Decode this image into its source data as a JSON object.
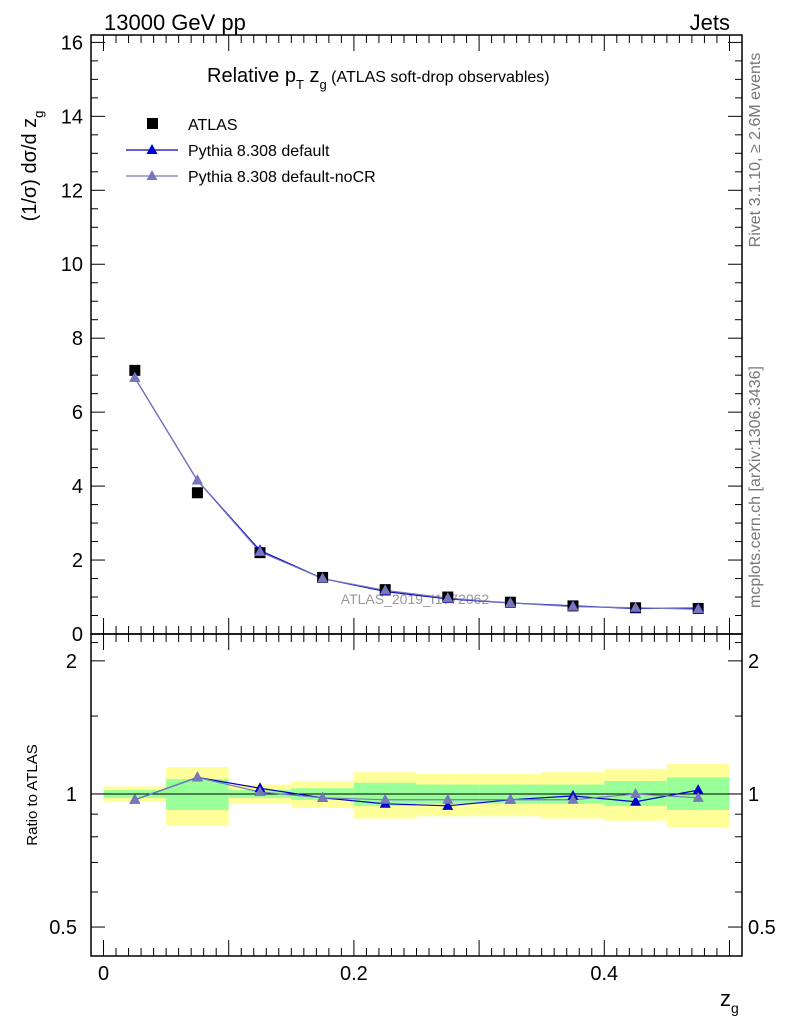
{
  "header": {
    "left": "13000 GeV pp",
    "right": "Jets"
  },
  "side_labels": {
    "rivet": "Rivet 3.1.10, ≥ 2.6M events",
    "mcplots": "mcplots.cern.ch [arXiv:1306.3436]"
  },
  "chart_data": [
    {
      "type": "line",
      "title": "Relative pT zg (ATLAS soft-drop observables)",
      "title_parts": {
        "a": "Relative p",
        "sub_t": "T",
        "b": " z",
        "sub_g": "g",
        "c": " (ATLAS soft-drop observables)"
      },
      "ylabel": "(1/σ) dσ/d zg",
      "ylabel_parts": {
        "main": "(1/σ) dσ/d z",
        "sub": "g"
      },
      "xlabel": "zg",
      "xlabel_parts": {
        "main": "z",
        "sub": "g"
      },
      "watermark": "ATLAS_2019_I1772062",
      "xlim": [
        -0.01,
        0.51
      ],
      "ylim": [
        0,
        16.2
      ],
      "yticks": [
        0,
        2,
        4,
        6,
        8,
        10,
        12,
        14,
        16
      ],
      "ytick_labels": [
        "0",
        "2",
        "4",
        "6",
        "8",
        "10",
        "12",
        "14",
        "16"
      ],
      "legend": {
        "placement": "top-left",
        "entries": [
          {
            "name": "ATLAS",
            "marker": "square",
            "color": "#000000"
          },
          {
            "name": "Pythia 8.308 default",
            "marker": "triangle",
            "color": "#0000cc"
          },
          {
            "name": "Pythia 8.308 default-noCR",
            "marker": "triangle",
            "color": "#7777bb"
          }
        ]
      },
      "x": [
        0.025,
        0.075,
        0.125,
        0.175,
        0.225,
        0.275,
        0.325,
        0.375,
        0.425,
        0.475
      ],
      "series": [
        {
          "name": "ATLAS",
          "color": "#000000",
          "values": [
            7.13,
            3.82,
            2.2,
            1.53,
            1.2,
            1.0,
            0.86,
            0.76,
            0.71,
            0.69
          ]
        },
        {
          "name": "Pythia 8.308 default",
          "color": "#0000cc",
          "values": [
            6.93,
            4.15,
            2.26,
            1.5,
            1.15,
            0.95,
            0.84,
            0.76,
            0.69,
            0.7
          ]
        },
        {
          "name": "Pythia 8.308 default-noCR",
          "color": "#7777bb",
          "values": [
            6.93,
            4.15,
            2.22,
            1.5,
            1.18,
            0.97,
            0.84,
            0.74,
            0.71,
            0.67
          ]
        }
      ]
    },
    {
      "type": "line",
      "title": "",
      "ylabel": "Ratio to ATLAS",
      "xlabel": "zg",
      "xlim": [
        -0.01,
        0.51
      ],
      "ylim": [
        0.43,
        2.3
      ],
      "y_scale": "log",
      "yticks": [
        0.5,
        1,
        2
      ],
      "ytick_labels": [
        "0.5",
        "1",
        "2"
      ],
      "xticks": [
        0,
        0.2,
        0.4
      ],
      "xtick_labels": [
        "0",
        "0.2",
        "0.4"
      ],
      "x": [
        0.025,
        0.075,
        0.125,
        0.175,
        0.225,
        0.275,
        0.325,
        0.375,
        0.425,
        0.475
      ],
      "bands": {
        "bin_edges": [
          0.0,
          0.05,
          0.1,
          0.15,
          0.2,
          0.25,
          0.3,
          0.35,
          0.4,
          0.45,
          0.5
        ],
        "stat_lo": [
          0.98,
          0.92,
          0.98,
          0.97,
          0.94,
          0.95,
          0.95,
          0.95,
          0.94,
          0.92
        ],
        "stat_hi": [
          1.02,
          1.08,
          1.02,
          1.03,
          1.06,
          1.05,
          1.05,
          1.05,
          1.07,
          1.09
        ],
        "total_lo": [
          0.96,
          0.85,
          0.95,
          0.93,
          0.88,
          0.89,
          0.89,
          0.88,
          0.87,
          0.84
        ],
        "total_hi": [
          1.04,
          1.15,
          1.05,
          1.07,
          1.12,
          1.11,
          1.11,
          1.12,
          1.14,
          1.17
        ],
        "stat_color": "#99ff99",
        "total_color": "#ffff99"
      },
      "series": [
        {
          "name": "Pythia 8.308 default",
          "color": "#0000cc",
          "values": [
            0.97,
            1.09,
            1.03,
            0.98,
            0.95,
            0.94,
            0.97,
            0.99,
            0.96,
            1.02
          ]
        },
        {
          "name": "Pythia 8.308 default-noCR",
          "color": "#7777bb",
          "values": [
            0.97,
            1.09,
            1.01,
            0.98,
            0.97,
            0.97,
            0.97,
            0.97,
            1.0,
            0.98
          ]
        }
      ]
    }
  ]
}
